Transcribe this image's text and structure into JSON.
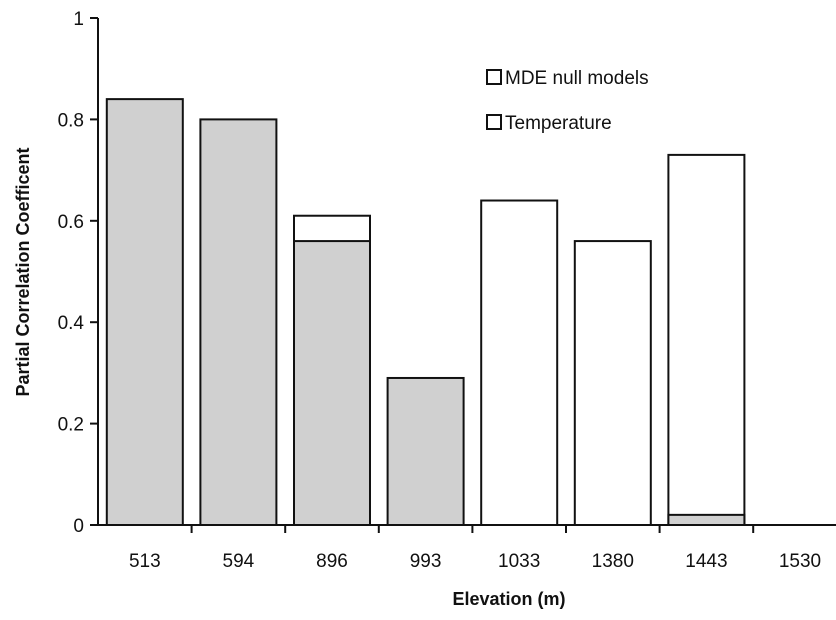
{
  "chart_data": {
    "type": "bar",
    "stacked_overlay": true,
    "categories": [
      "513",
      "594",
      "896",
      "993",
      "1033",
      "1380",
      "1443",
      "1530"
    ],
    "series": [
      {
        "name": "MDE null models",
        "values": [
          0.0,
          0.0,
          0.61,
          0.0,
          0.64,
          0.56,
          0.73,
          0.0
        ],
        "color": "#ffffff"
      },
      {
        "name": "Temperature",
        "values": [
          0.84,
          0.8,
          0.56,
          0.29,
          0.0,
          0.0,
          0.02,
          0.0
        ],
        "color": "#d0d0d0"
      }
    ],
    "xlabel": "Elevation (m)",
    "ylabel": "Partial Correlation Coefficent",
    "ylim": [
      0,
      1
    ],
    "yticks": [
      "0",
      "0.2",
      "0.4",
      "0.6",
      "0.8",
      "1"
    ],
    "yticks_values": [
      0,
      0.2,
      0.4,
      0.6,
      0.8,
      1
    ],
    "grid": false,
    "legend_position": "top-right"
  }
}
